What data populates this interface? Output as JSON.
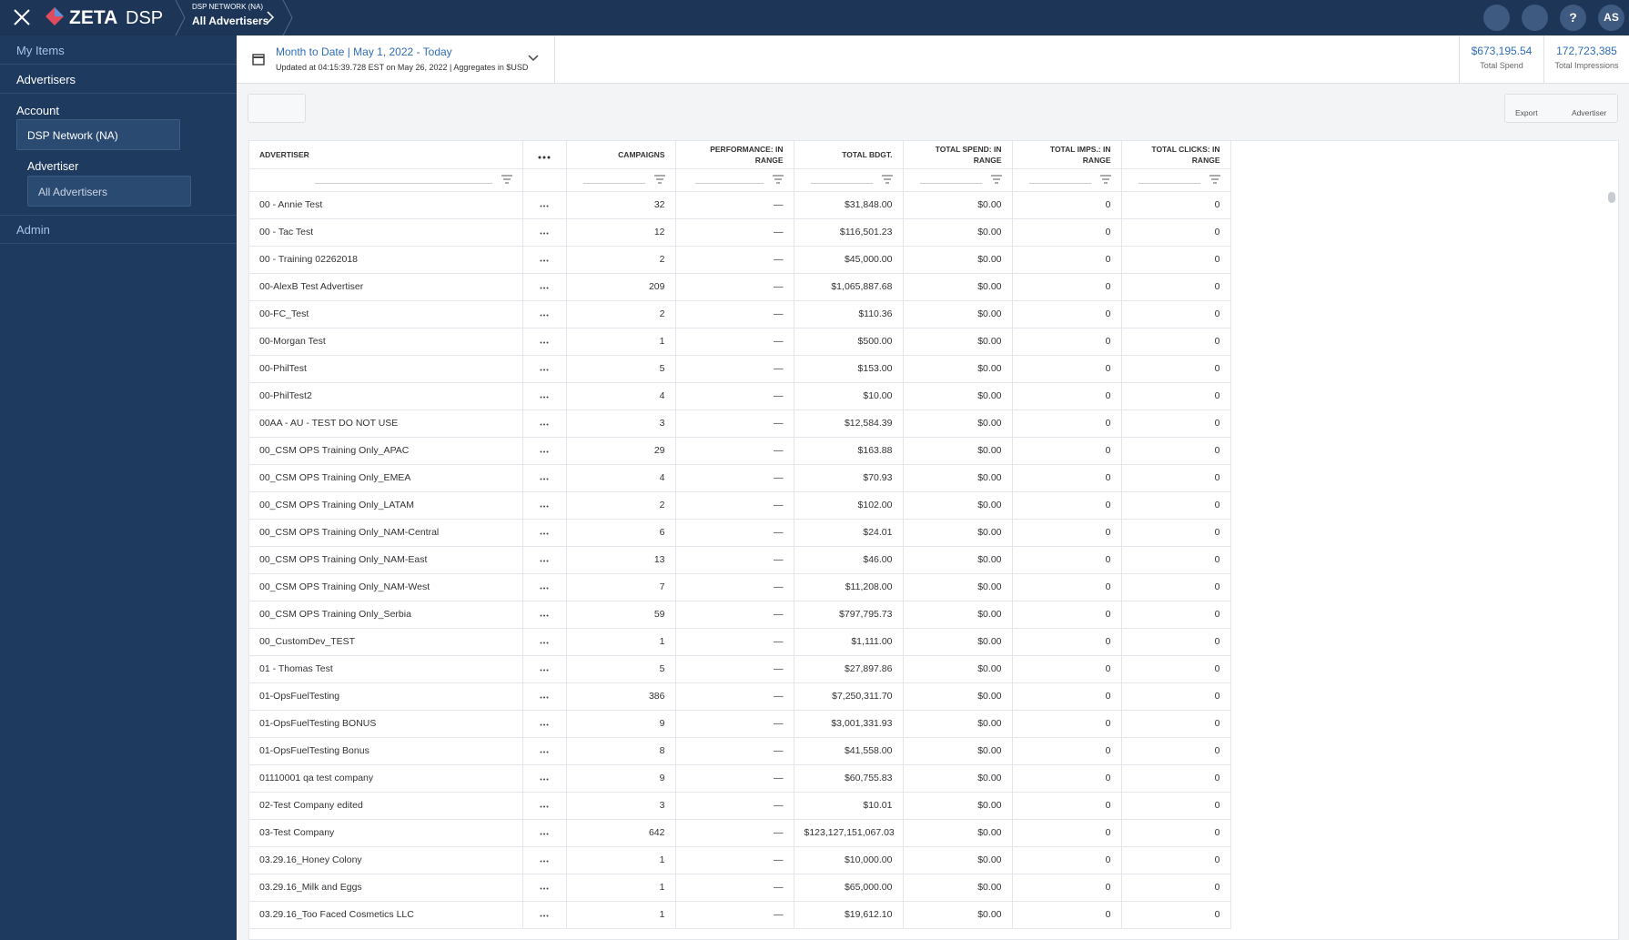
{
  "header": {
    "brand": "ZETA",
    "product": "DSP",
    "network": "DSP NETWORK (NA)",
    "current": "All Advertisers",
    "user_initials": "AS"
  },
  "sidebar": {
    "my_items": "My Items",
    "advertisers": "Advertisers",
    "account_label": "Account",
    "account_value": "DSP Network (NA)",
    "advertiser_label": "Advertiser",
    "advertiser_value": "All Advertisers",
    "admin": "Admin"
  },
  "date_range": {
    "title": "Month to Date | May 1, 2022 - Today",
    "subtitle": "Updated at 04:15:39.728 EST on May 26, 2022 | Aggregates in $USD"
  },
  "summary": [
    {
      "value": "$673,195.54",
      "label": "Total Spend"
    },
    {
      "value": "172,723,385",
      "label": "Total Impressions"
    }
  ],
  "toolbar": {
    "export": "Export",
    "add": "Advertiser"
  },
  "table": {
    "columns": [
      "ADVERTISER",
      "CAMPAIGNS",
      "PERFORMANCE: IN RANGE",
      "TOTAL BDGT.",
      "TOTAL SPEND: IN RANGE",
      "TOTAL IMPS.: IN RANGE",
      "TOTAL CLICKS: IN RANGE"
    ],
    "rows": [
      [
        "00 - Annie Test",
        32,
        "—",
        "$31,848.00",
        "$0.00",
        0,
        0
      ],
      [
        "00 - Tac Test",
        12,
        "—",
        "$116,501.23",
        "$0.00",
        0,
        0
      ],
      [
        "00 - Training 02262018",
        2,
        "—",
        "$45,000.00",
        "$0.00",
        0,
        0
      ],
      [
        "00-AlexB Test Advertiser",
        209,
        "—",
        "$1,065,887.68",
        "$0.00",
        0,
        0
      ],
      [
        "00-FC_Test",
        2,
        "—",
        "$110.36",
        "$0.00",
        0,
        0
      ],
      [
        "00-Morgan Test",
        1,
        "—",
        "$500.00",
        "$0.00",
        0,
        0
      ],
      [
        "00-PhilTest",
        5,
        "—",
        "$153.00",
        "$0.00",
        0,
        0
      ],
      [
        "00-PhilTest2",
        4,
        "—",
        "$10.00",
        "$0.00",
        0,
        0
      ],
      [
        "00AA - AU - TEST DO NOT USE",
        3,
        "—",
        "$12,584.39",
        "$0.00",
        0,
        0
      ],
      [
        "00_CSM OPS Training Only_APAC",
        29,
        "—",
        "$163.88",
        "$0.00",
        0,
        0
      ],
      [
        "00_CSM OPS Training Only_EMEA",
        4,
        "—",
        "$70.93",
        "$0.00",
        0,
        0
      ],
      [
        "00_CSM OPS Training Only_LATAM",
        2,
        "—",
        "$102.00",
        "$0.00",
        0,
        0
      ],
      [
        "00_CSM OPS Training Only_NAM-Central",
        6,
        "—",
        "$24.01",
        "$0.00",
        0,
        0
      ],
      [
        "00_CSM OPS Training Only_NAM-East",
        13,
        "—",
        "$46.00",
        "$0.00",
        0,
        0
      ],
      [
        "00_CSM OPS Training Only_NAM-West",
        7,
        "—",
        "$11,208.00",
        "$0.00",
        0,
        0
      ],
      [
        "00_CSM OPS Training Only_Serbia",
        59,
        "—",
        "$797,795.73",
        "$0.00",
        0,
        0
      ],
      [
        "00_CustomDev_TEST",
        1,
        "—",
        "$1,111.00",
        "$0.00",
        0,
        0
      ],
      [
        "01 - Thomas Test",
        5,
        "—",
        "$27,897.86",
        "$0.00",
        0,
        0
      ],
      [
        "01-OpsFuelTesting",
        386,
        "—",
        "$7,250,311.70",
        "$0.00",
        0,
        0
      ],
      [
        "01-OpsFuelTesting BONUS",
        9,
        "—",
        "$3,001,331.93",
        "$0.00",
        0,
        0
      ],
      [
        "01-OpsFuelTesting Bonus",
        8,
        "—",
        "$41,558.00",
        "$0.00",
        0,
        0
      ],
      [
        "01110001 qa test company",
        9,
        "—",
        "$60,755.83",
        "$0.00",
        0,
        0
      ],
      [
        "02-Test Company edited",
        3,
        "—",
        "$10.01",
        "$0.00",
        0,
        0
      ],
      [
        "03-Test Company",
        642,
        "—",
        "$123,127,151,067.03",
        "$0.00",
        0,
        0
      ],
      [
        "03.29.16_Honey Colony",
        1,
        "—",
        "$10,000.00",
        "$0.00",
        0,
        0
      ],
      [
        "03.29.16_Milk and Eggs",
        1,
        "—",
        "$65,000.00",
        "$0.00",
        0,
        0
      ],
      [
        "03.29.16_Too Faced Cosmetics LLC",
        1,
        "—",
        "$19,612.10",
        "$0.00",
        0,
        0
      ]
    ]
  }
}
